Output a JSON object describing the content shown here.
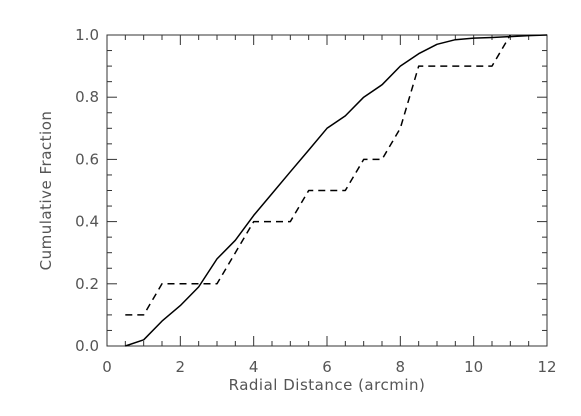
{
  "chart_data": {
    "type": "line",
    "title": "",
    "xlabel": "Radial Distance (arcmin)",
    "ylabel": "Cumulative Fraction",
    "xlim": [
      0,
      12
    ],
    "ylim": [
      0,
      1.0
    ],
    "x_ticks": [
      "0",
      "2",
      "4",
      "6",
      "8",
      "10",
      "12"
    ],
    "y_ticks": [
      "0.0",
      "0.2",
      "0.4",
      "0.6",
      "0.8",
      "1.0"
    ],
    "grid": false,
    "legend": "none",
    "series": [
      {
        "style": "solid",
        "color": "#000000",
        "x": [
          0.5,
          1.0,
          1.5,
          2.0,
          2.5,
          3.0,
          3.5,
          4.0,
          4.5,
          5.0,
          5.5,
          6.0,
          6.5,
          7.0,
          7.5,
          8.0,
          8.5,
          9.0,
          9.5,
          10.0,
          10.5,
          11.0,
          11.5,
          12.0
        ],
        "y": [
          0.0,
          0.02,
          0.08,
          0.13,
          0.19,
          0.28,
          0.34,
          0.42,
          0.49,
          0.56,
          0.63,
          0.7,
          0.74,
          0.8,
          0.84,
          0.9,
          0.94,
          0.97,
          0.985,
          0.99,
          0.992,
          0.995,
          0.998,
          1.0
        ]
      },
      {
        "style": "dashed",
        "color": "#000000",
        "x": [
          0.5,
          1.0,
          1.0,
          1.5,
          1.5,
          3.0,
          3.0,
          4.0,
          4.0,
          5.0,
          5.0,
          5.5,
          5.5,
          6.5,
          6.5,
          7.0,
          7.0,
          7.5,
          7.5,
          8.0,
          8.0,
          8.5,
          8.5,
          10.5,
          10.5,
          11.0,
          11.0
        ],
        "y": [
          0.1,
          0.1,
          0.1,
          0.2,
          0.2,
          0.2,
          0.2,
          0.4,
          0.4,
          0.4,
          0.4,
          0.5,
          0.5,
          0.5,
          0.5,
          0.6,
          0.6,
          0.6,
          0.6,
          0.7,
          0.7,
          0.9,
          0.9,
          0.9,
          0.9,
          1.0,
          1.0
        ]
      }
    ]
  }
}
